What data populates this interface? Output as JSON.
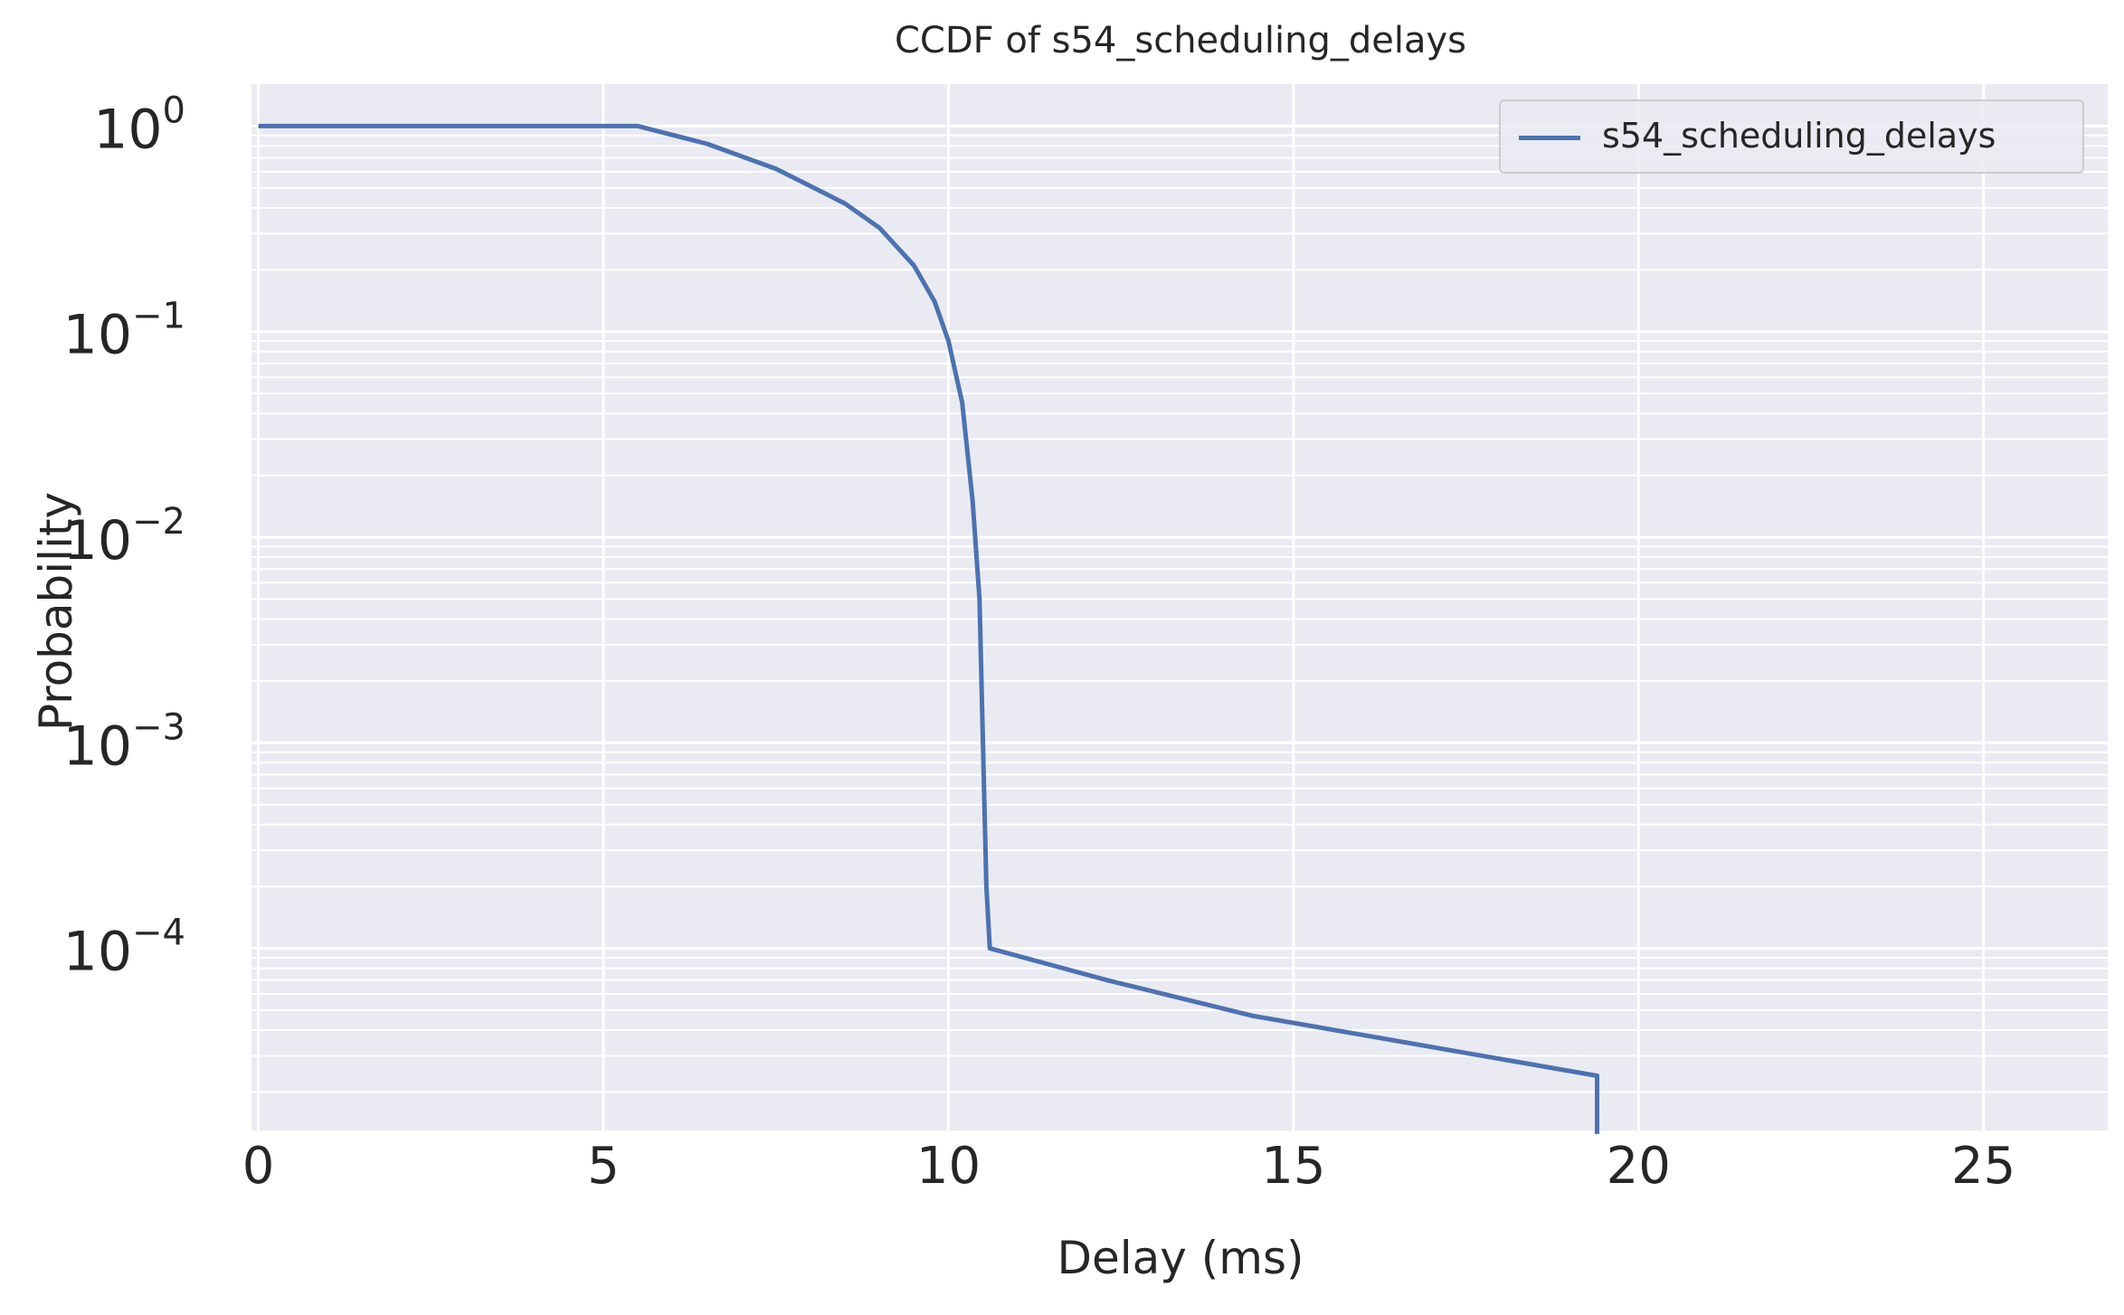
{
  "chart_data": {
    "type": "line",
    "title": "CCDF of s54_scheduling_delays",
    "xlabel": "Delay (ms)",
    "ylabel": "Probability",
    "xlim": [
      -0.1,
      26.8
    ],
    "ylim": [
      1.3e-05,
      1.6
    ],
    "yscale": "log",
    "grid": true,
    "legend_position": "top-right",
    "x_ticks": [
      {
        "value": 0,
        "label": "0"
      },
      {
        "value": 5,
        "label": "5"
      },
      {
        "value": 10,
        "label": "10"
      },
      {
        "value": 15,
        "label": "15"
      },
      {
        "value": 20,
        "label": "20"
      },
      {
        "value": 25,
        "label": "25"
      }
    ],
    "y_ticks": [
      {
        "value": 1,
        "base": "10",
        "exp": "0"
      },
      {
        "value": 0.1,
        "base": "10",
        "exp": "−1"
      },
      {
        "value": 0.01,
        "base": "10",
        "exp": "−2"
      },
      {
        "value": 0.001,
        "base": "10",
        "exp": "−3"
      },
      {
        "value": 0.0001,
        "base": "10",
        "exp": "−4"
      }
    ],
    "series": [
      {
        "name": "s54_scheduling_delays",
        "color": "#4c72b0",
        "x": [
          0,
          5.5,
          6.5,
          7.5,
          8.5,
          9.0,
          9.5,
          9.8,
          10.0,
          10.2,
          10.35,
          10.45,
          10.5,
          10.55,
          10.6,
          12.3,
          14.4,
          19.4,
          19.4
        ],
        "y": [
          1.0,
          1.0,
          0.82,
          0.62,
          0.42,
          0.32,
          0.21,
          0.14,
          0.09,
          0.045,
          0.015,
          0.005,
          0.001,
          0.0002,
          0.0001,
          7e-05,
          4.7e-05,
          2.4e-05,
          1.25e-05
        ]
      }
    ]
  }
}
